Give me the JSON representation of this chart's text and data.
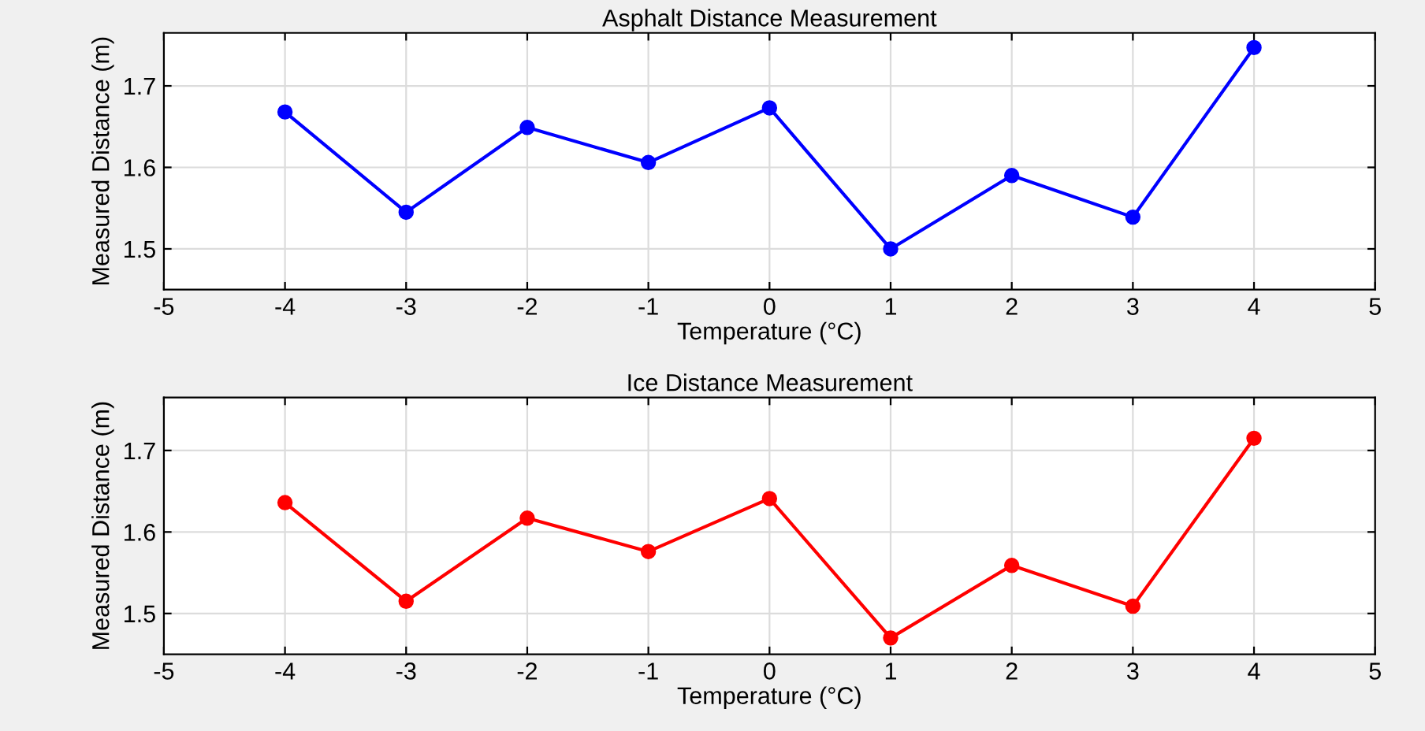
{
  "chart_data": [
    {
      "type": "line",
      "title": "Asphalt Distance Measurement",
      "xlabel": "Temperature (°C)",
      "ylabel": "Measured Distance (m)",
      "x": [
        -4,
        -3,
        -2,
        -1,
        0,
        1,
        2,
        3,
        4
      ],
      "series": [
        {
          "color": "#0000ff",
          "values": [
            1.668,
            1.545,
            1.649,
            1.606,
            1.673,
            1.5,
            1.59,
            1.539,
            1.747
          ]
        }
      ],
      "xlim": [
        -5,
        5
      ],
      "xticks": [
        -5,
        -4,
        -3,
        -2,
        -1,
        0,
        1,
        2,
        3,
        4,
        5
      ],
      "ylim": [
        1.45,
        1.765
      ],
      "yticks": [
        1.5,
        1.6,
        1.7
      ],
      "grid": true,
      "marker": "circle",
      "line_style": "solid"
    },
    {
      "type": "line",
      "title": "Ice Distance Measurement",
      "xlabel": "Temperature (°C)",
      "ylabel": "Measured Distance (m)",
      "x": [
        -4,
        -3,
        -2,
        -1,
        0,
        1,
        2,
        3,
        4
      ],
      "series": [
        {
          "color": "#ff0000",
          "values": [
            1.636,
            1.515,
            1.617,
            1.576,
            1.641,
            1.47,
            1.559,
            1.509,
            1.715
          ]
        }
      ],
      "xlim": [
        -5,
        5
      ],
      "xticks": [
        -5,
        -4,
        -3,
        -2,
        -1,
        0,
        1,
        2,
        3,
        4,
        5
      ],
      "ylim": [
        1.45,
        1.765
      ],
      "yticks": [
        1.5,
        1.6,
        1.7
      ],
      "grid": true,
      "marker": "circle",
      "line_style": "solid"
    }
  ]
}
